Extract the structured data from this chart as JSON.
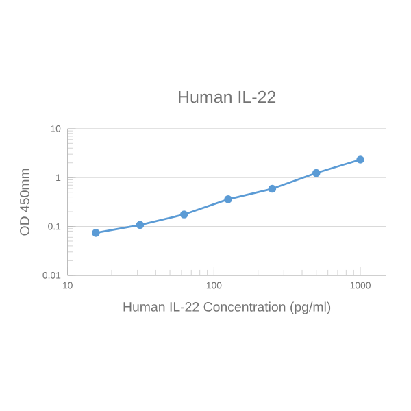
{
  "chart_data": {
    "type": "line",
    "title": "Human IL-22",
    "xlabel": "Human IL-22 Concentration (pg/ml)",
    "ylabel": "OD 450mm",
    "x": [
      15.6,
      31.25,
      62.5,
      125,
      250,
      500,
      1000
    ],
    "series": [
      {
        "color": "#5b9bd5",
        "values": [
          0.074,
          0.107,
          0.176,
          0.36,
          0.59,
          1.24,
          2.33
        ]
      }
    ],
    "log": "xy",
    "xlim": [
      10,
      1500
    ],
    "ylim": [
      0.01,
      10
    ],
    "xticks": [
      10,
      100,
      1000
    ],
    "yticks": [
      0.01,
      0.1,
      1,
      10
    ],
    "grid": "y",
    "marker": "circle",
    "line_style": "solid"
  }
}
